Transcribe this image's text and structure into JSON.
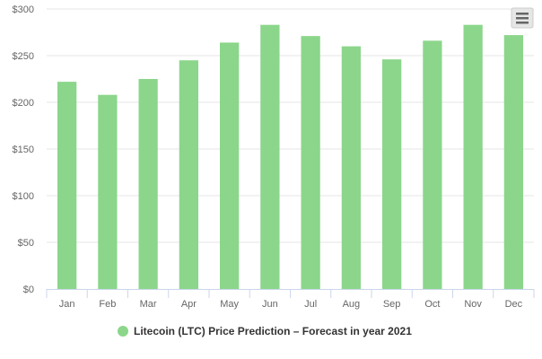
{
  "chart_data": {
    "type": "bar",
    "categories": [
      "Jan",
      "Feb",
      "Mar",
      "Apr",
      "May",
      "Jun",
      "Jul",
      "Aug",
      "Sep",
      "Oct",
      "Nov",
      "Dec"
    ],
    "series": [
      {
        "name": "Litecoin (LTC) Price Prediction – Forecast in year 2021",
        "values": [
          222,
          208,
          225,
          245,
          264,
          283,
          271,
          260,
          246,
          266,
          283,
          272
        ],
        "color": "#8bd68b"
      }
    ],
    "y_ticks": [
      "$0",
      "$50",
      "$100",
      "$150",
      "$200",
      "$250",
      "$300"
    ],
    "ylim": [
      0,
      300
    ],
    "grid": true,
    "legend_position": "bottom-center"
  },
  "toolbar": {
    "menu_icon": "hamburger-menu-icon"
  },
  "colors": {
    "bar": "#8bd68b",
    "grid": "#e6e6e6",
    "axis": "#ccd6eb"
  }
}
